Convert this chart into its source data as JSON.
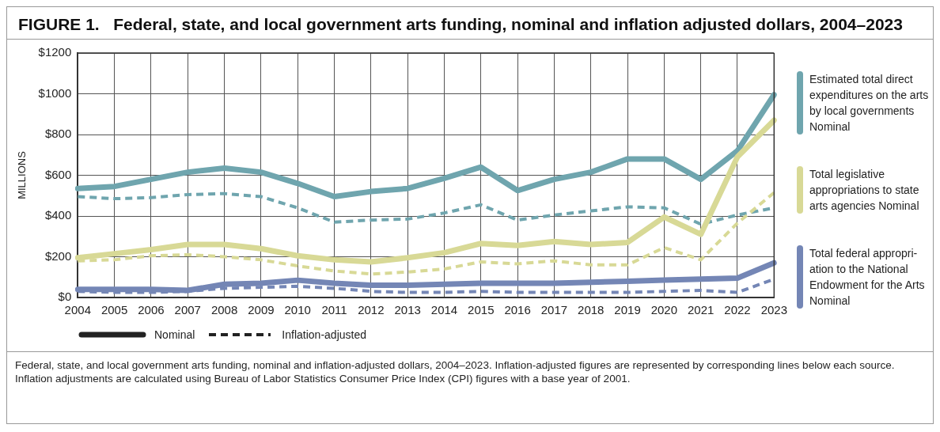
{
  "chart_data": {
    "type": "line",
    "title": "FIGURE 1.   Federal, state, and local government arts funding, nominal and inflation adjusted dollars, 2004–2023",
    "ylabel": "MILLIONS",
    "categories": [
      "2004",
      "2005",
      "2006",
      "2007",
      "2008",
      "2009",
      "2010",
      "2011",
      "2012",
      "2013",
      "2014",
      "2015",
      "2016",
      "2017",
      "2018",
      "2019",
      "2020",
      "2021",
      "2022",
      "2023"
    ],
    "series": [
      {
        "name": "Estimated total direct expenditures on the arts by local governments Nominal",
        "color": "#6fa5ae",
        "line_style": "solid",
        "values": [
          535,
          545,
          580,
          615,
          635,
          615,
          560,
          495,
          520,
          535,
          585,
          640,
          525,
          580,
          615,
          680,
          680,
          580,
          720,
          995
        ]
      },
      {
        "color": "#6fa5ae",
        "line_style": "dashed",
        "values": [
          495,
          485,
          490,
          505,
          510,
          495,
          440,
          370,
          380,
          385,
          415,
          455,
          380,
          405,
          425,
          445,
          440,
          360,
          405,
          440
        ]
      },
      {
        "name": "Total legislative appropriations to state arts agencies Nominal",
        "color": "#d8d996",
        "line_style": "solid",
        "values": [
          195,
          215,
          235,
          260,
          260,
          240,
          205,
          185,
          175,
          195,
          220,
          265,
          255,
          275,
          260,
          270,
          395,
          310,
          690,
          870
        ]
      },
      {
        "color": "#d8d996",
        "line_style": "dashed",
        "values": [
          180,
          185,
          205,
          210,
          200,
          185,
          155,
          130,
          115,
          125,
          140,
          175,
          165,
          180,
          160,
          160,
          245,
          185,
          365,
          515
        ]
      },
      {
        "name": "Total federal appropri-ation to the National Endowment for the Arts Nominal",
        "color": "#7486b5",
        "line_style": "solid",
        "values": [
          40,
          40,
          40,
          35,
          65,
          70,
          85,
          70,
          60,
          60,
          65,
          70,
          70,
          70,
          75,
          80,
          85,
          90,
          95,
          170
        ]
      },
      {
        "color": "#7486b5",
        "line_style": "dashed",
        "values": [
          30,
          25,
          25,
          30,
          45,
          50,
          55,
          45,
          30,
          25,
          25,
          30,
          25,
          25,
          25,
          25,
          30,
          35,
          25,
          90
        ]
      }
    ],
    "ylim": [
      0,
      1200
    ],
    "yticks": [
      {
        "value": 0,
        "label": "$0"
      },
      {
        "value": 200,
        "label": "$200"
      },
      {
        "value": 400,
        "label": "$400"
      },
      {
        "value": 600,
        "label": "$600"
      },
      {
        "value": 800,
        "label": "$800"
      },
      {
        "value": 1000,
        "label": "$1000"
      },
      {
        "value": 1200,
        "label": "$1200"
      }
    ],
    "grid": true,
    "legend": "right",
    "marker": "none",
    "annotations": [
      "Nominal",
      "Inflation-adjusted",
      "Federal, state, and local government arts funding, nominal and inflation-adjusted dollars, 2004–2023. Inflation-adjusted figures are represented by corresponding lines below each source.  Inflation adjustments are calculated using Bureau of Labor Statistics Consumer Price Index (CPI) figures with a base year of 2001."
    ]
  }
}
